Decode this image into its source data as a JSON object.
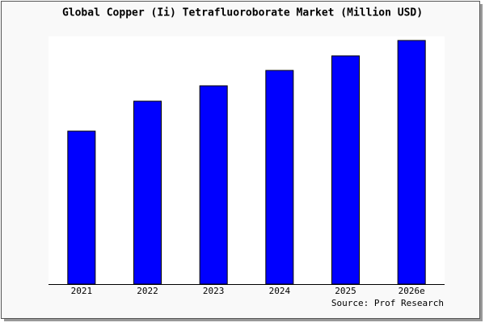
{
  "chart_data": {
    "type": "bar",
    "title": "Global Copper (Ii) Tetrafluoroborate Market (Million USD)",
    "categories": [
      "2021",
      "2022",
      "2023",
      "2024",
      "2025",
      "2026e"
    ],
    "values": [
      189,
      226,
      245,
      264,
      282,
      301
    ],
    "color": "#0000ff",
    "ylim": [
      0,
      306
    ],
    "source": "Source: Prof Research"
  }
}
